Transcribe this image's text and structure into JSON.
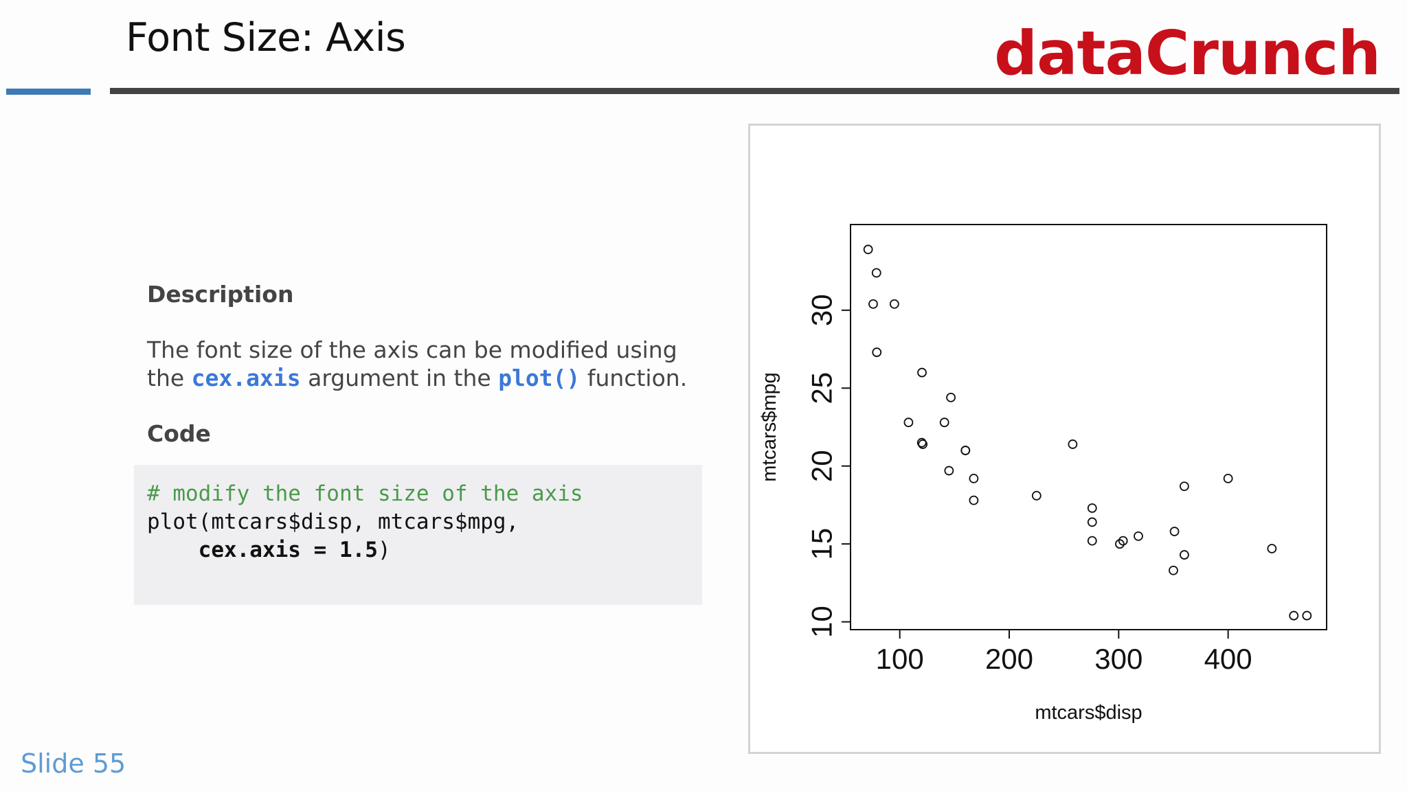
{
  "slide": {
    "title": "Font Size: Axis",
    "brand": "dataCrunch",
    "number": "Slide 55",
    "description_heading": "Description",
    "description_before": "The font size of the axis can be modified using the ",
    "description_kw1": "cex.axis",
    "description_mid": " argument in the ",
    "description_kw2": "plot()",
    "description_after": " function.",
    "code_heading": "Code",
    "code_comment": "# modify the font size of the axis",
    "code_line2": "plot(mtcars$disp, mtcars$mpg,",
    "code_line3_prefix": "    ",
    "code_line3_bold": "cex.axis = 1.5",
    "code_line3_suffix": ")"
  },
  "chart_data": {
    "type": "scatter",
    "title": "",
    "xlabel": "mtcars$disp",
    "ylabel": "mtcars$mpg",
    "xlim": [
      55,
      490
    ],
    "ylim": [
      9.5,
      35.5
    ],
    "x_ticks": [
      100,
      200,
      300,
      400
    ],
    "y_ticks": [
      10,
      15,
      20,
      25,
      30
    ],
    "x_tick_labels": [
      "100",
      "200",
      "300",
      "400"
    ],
    "y_tick_labels": [
      "10",
      "15",
      "20",
      "25",
      "30"
    ],
    "grid": false,
    "legend": "none",
    "marker": "open-circle",
    "x": [
      160,
      160,
      108,
      258,
      360,
      225,
      360,
      146.7,
      140.8,
      167.6,
      167.6,
      275.8,
      275.8,
      275.8,
      472,
      460,
      440,
      78.7,
      75.7,
      71.1,
      120.1,
      318,
      304,
      350,
      400,
      79,
      120.3,
      95.1,
      351,
      145,
      301,
      121
    ],
    "y": [
      21.0,
      21.0,
      22.8,
      21.4,
      18.7,
      18.1,
      14.3,
      24.4,
      22.8,
      19.2,
      17.8,
      16.4,
      17.3,
      15.2,
      10.4,
      10.4,
      14.7,
      32.4,
      30.4,
      33.9,
      21.5,
      15.5,
      15.2,
      13.3,
      19.2,
      27.3,
      26.0,
      30.4,
      15.8,
      19.7,
      15.0,
      21.4
    ]
  }
}
